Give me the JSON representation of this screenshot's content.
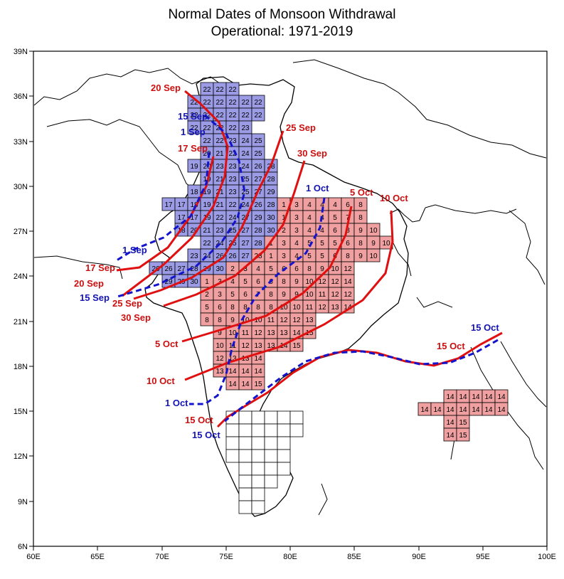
{
  "title": {
    "line1": "Normal Dates of Monsoon Withdrawal",
    "line2": "Operational: 1971-2019"
  },
  "colors": {
    "blue_zone": "#9c9ce6",
    "red_zone": "#f0a0a0",
    "red_line": "#e01010",
    "red_text": "#cc1010",
    "blue_line": "#1414cc",
    "blue_text": "#1414b4"
  },
  "axes": {
    "x_ticks": [
      "60E",
      "65E",
      "70E",
      "75E",
      "80E",
      "85E",
      "90E",
      "95E",
      "100E"
    ],
    "y_ticks": [
      "6N",
      "9N",
      "12N",
      "15N",
      "18N",
      "21N",
      "24N",
      "27N",
      "30N",
      "33N",
      "36N",
      "39N"
    ]
  },
  "red_labels": [
    "20 Sep",
    "17 Sep",
    "25 Sep",
    "30 Sep",
    "5 Oct",
    "10 Oct",
    "17 Sep",
    "20 Sep",
    "25 Sep",
    "30 Sep",
    "5 Oct",
    "10 Oct",
    "15 Oct",
    "15 Oct"
  ],
  "blue_labels": [
    "15 Sep",
    "1 Sep",
    "1 Oct",
    "1 Sep",
    "15 Sep",
    "1 Oct",
    "15 Oct",
    "15 Oct"
  ],
  "grid_rows": [
    [
      "22",
      "22",
      "22"
    ],
    [
      "22",
      "22",
      "22",
      "22",
      "22",
      "22"
    ],
    [
      "22",
      "22",
      "22",
      "22",
      "22",
      "22"
    ],
    [
      "22",
      "22",
      "22",
      "22",
      "23"
    ],
    [
      "22",
      "22",
      "23",
      "24",
      "25"
    ],
    [
      "20",
      "21",
      "22",
      "24",
      "25"
    ],
    [
      "19",
      "20",
      "23",
      "23",
      "24",
      "26",
      "28"
    ],
    [
      "19",
      "21",
      "23",
      "25",
      "27",
      "28"
    ],
    [
      "18",
      "19",
      "21",
      "23",
      "25",
      "27",
      "29"
    ],
    [
      "17",
      "17",
      "18",
      "19",
      "21",
      "22",
      "24",
      "26",
      "28",
      "1",
      "3",
      "4",
      "4",
      "4",
      "6",
      "8"
    ],
    [
      "17",
      "17",
      "19",
      "22",
      "24",
      "27",
      "29",
      "30",
      "1",
      "3",
      "4",
      "4",
      "5",
      "7",
      "8"
    ],
    [
      "18",
      "20",
      "21",
      "23",
      "25",
      "27",
      "28",
      "30",
      "2",
      "3",
      "4",
      "4",
      "6",
      "8",
      "9",
      "10"
    ],
    [
      "22",
      "24",
      "25",
      "27",
      "28",
      "1",
      "3",
      "4",
      "5",
      "5",
      "5",
      "6",
      "8",
      "9",
      "10"
    ],
    [
      "23",
      "24",
      "26",
      "26",
      "27",
      "28",
      "1",
      "3",
      "4",
      "5",
      "5",
      "6",
      "8",
      "9",
      "10"
    ],
    [
      "26",
      "26",
      "27",
      "28",
      "29",
      "30",
      "2",
      "3",
      "4",
      "5",
      "6",
      "6",
      "8",
      "9",
      "10",
      "12"
    ],
    [
      "29",
      "29",
      "30",
      "1",
      "3",
      "4",
      "5",
      "6",
      "6",
      "8",
      "9",
      "10",
      "12",
      "12",
      "14"
    ],
    [
      "2",
      "3",
      "5",
      "6",
      "7",
      "8",
      "9",
      "9",
      "10",
      "11",
      "12",
      "12"
    ],
    [
      "5",
      "6",
      "8",
      "8",
      "8",
      "8",
      "10",
      "10",
      "11",
      "12",
      "13",
      "14"
    ],
    [
      "8",
      "8",
      "9",
      "10",
      "10",
      "11",
      "12",
      "12",
      "13"
    ],
    [
      "9",
      "10",
      "11",
      "12",
      "13",
      "13",
      "14",
      "15"
    ],
    [
      "10",
      "11",
      "12",
      "13",
      "13",
      "14",
      "15"
    ],
    [
      "12",
      "13",
      "13",
      "14"
    ],
    [
      "13",
      "14",
      "14",
      "14"
    ],
    [
      "14",
      "14",
      "15"
    ],
    [
      "14",
      "14",
      "14",
      "14",
      "14"
    ],
    [
      "14",
      "14",
      "14",
      "14",
      "14",
      "14",
      "14"
    ],
    [
      "14",
      "15"
    ],
    [
      "14",
      "15"
    ]
  ]
}
